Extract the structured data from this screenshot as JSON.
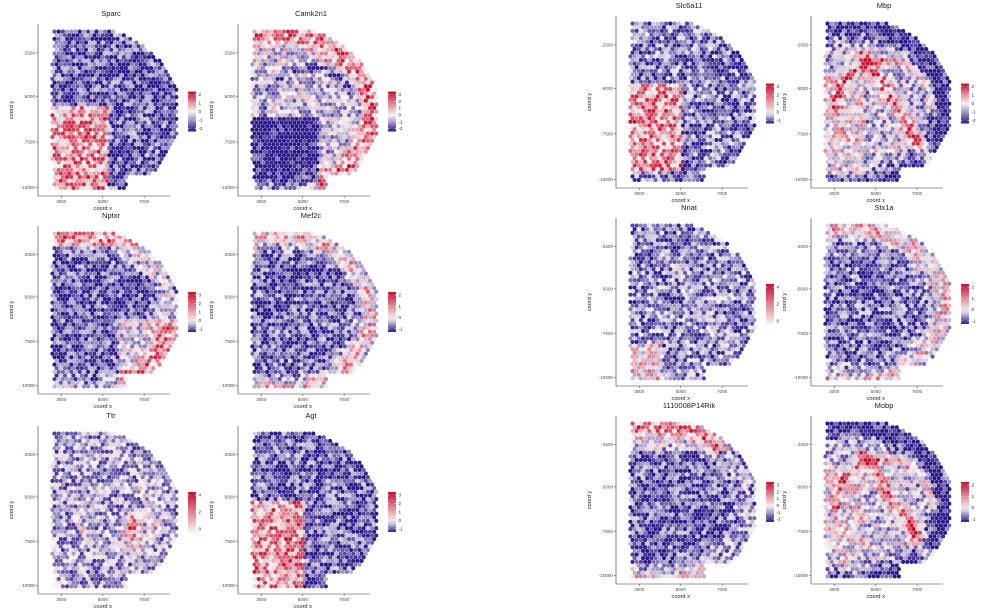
{
  "chart_data": [
    {
      "type": "heatmap",
      "title": "Sparc",
      "xlabel": "coord x",
      "ylabel": "coord y",
      "x_ticks": [
        "3000",
        "5000",
        "7000"
      ],
      "y_ticks": [
        "-2500",
        "-5000",
        "-7500",
        "-10000"
      ],
      "legend_ticks": [
        "2",
        "1",
        "0",
        "-1",
        "-2"
      ],
      "pattern": "sparc"
    },
    {
      "type": "heatmap",
      "title": "Camk2n1",
      "xlabel": "coord x",
      "ylabel": "coord y",
      "x_ticks": [
        "3000",
        "5000",
        "7000"
      ],
      "y_ticks": [
        "-2500",
        "-5000",
        "-7500",
        "-10000"
      ],
      "legend_ticks": [
        "3",
        "2",
        "1",
        "0",
        "-1",
        "-2"
      ],
      "pattern": "camk2n1"
    },
    {
      "type": "heatmap",
      "title": "Slc6a11",
      "xlabel": "coord x",
      "ylabel": "coord y",
      "x_ticks": [
        "3000",
        "5000",
        "7000"
      ],
      "y_ticks": [
        "-2500",
        "-5000",
        "-7500",
        "-10000"
      ],
      "legend_ticks": [
        "3",
        "2",
        "1",
        "0",
        "-1"
      ],
      "pattern": "slc6a11"
    },
    {
      "type": "heatmap",
      "title": "Mbp",
      "xlabel": "coord x",
      "ylabel": "coord y",
      "x_ticks": [
        "3000",
        "5000",
        "7000"
      ],
      "y_ticks": [
        "-2500",
        "-5000",
        "-7500",
        "-10000"
      ],
      "legend_ticks": [
        "2",
        "1",
        "0",
        "-1",
        "-2"
      ],
      "pattern": "mbp"
    },
    {
      "type": "heatmap",
      "title": "Nptxr",
      "xlabel": "coord x",
      "ylabel": "coord y",
      "x_ticks": [
        "3000",
        "5000",
        "7000"
      ],
      "y_ticks": [
        "-2500",
        "-5000",
        "-7500",
        "-10000"
      ],
      "legend_ticks": [
        "3",
        "2",
        "1",
        "0",
        "-1"
      ],
      "pattern": "nptxr"
    },
    {
      "type": "heatmap",
      "title": "Mef2c",
      "xlabel": "coord x",
      "ylabel": "coord y",
      "x_ticks": [
        "3000",
        "5000",
        "7000"
      ],
      "y_ticks": [
        "-2500",
        "-5000",
        "-7500",
        "-10000"
      ],
      "legend_ticks": [
        "2",
        "1",
        "0",
        "-1"
      ],
      "pattern": "mef2c"
    },
    {
      "type": "heatmap",
      "title": "Nnat",
      "xlabel": "coord x",
      "ylabel": "coord y",
      "x_ticks": [
        "3000",
        "5000",
        "7000"
      ],
      "y_ticks": [
        "-2500",
        "-5000",
        "-7500",
        "-10000"
      ],
      "legend_ticks": [
        "4",
        "2",
        "0"
      ],
      "pattern": "nnat"
    },
    {
      "type": "heatmap",
      "title": "Stx1a",
      "xlabel": "coord x",
      "ylabel": "coord y",
      "x_ticks": [
        "3000",
        "5000",
        "7000"
      ],
      "y_ticks": [
        "-2500",
        "-5000",
        "-7500",
        "-10000"
      ],
      "legend_ticks": [
        "2",
        "1",
        "0",
        "-1"
      ],
      "pattern": "stx1a"
    },
    {
      "type": "heatmap",
      "title": "Ttr",
      "xlabel": "coord x",
      "ylabel": "coord y",
      "x_ticks": [
        "3000",
        "5000",
        "7000"
      ],
      "y_ticks": [
        "-2500",
        "-5000",
        "-7500",
        "-10000"
      ],
      "legend_ticks": [
        "4",
        "2",
        "0"
      ],
      "pattern": "ttr"
    },
    {
      "type": "heatmap",
      "title": "Agt",
      "xlabel": "coord x",
      "ylabel": "coord y",
      "x_ticks": [
        "3000",
        "5000",
        "7000"
      ],
      "y_ticks": [
        "-2500",
        "-5000",
        "-7500",
        "-10000"
      ],
      "legend_ticks": [
        "3",
        "2",
        "1",
        "0",
        "-1"
      ],
      "pattern": "agt"
    },
    {
      "type": "heatmap",
      "title": "1110008P14Rik",
      "xlabel": "coord x",
      "ylabel": "coord y",
      "x_ticks": [
        "3000",
        "5000",
        "7000"
      ],
      "y_ticks": [
        "-2500",
        "-5000",
        "-7500",
        "-10000"
      ],
      "legend_ticks": [
        "3",
        "2",
        "1",
        "0",
        "-1",
        "-2"
      ],
      "pattern": "rik"
    },
    {
      "type": "heatmap",
      "title": "Mobp",
      "xlabel": "coord x",
      "ylabel": "coord y",
      "x_ticks": [
        "3000",
        "5000",
        "7000"
      ],
      "y_ticks": [
        "-2500",
        "-5000",
        "-7500",
        "-10000"
      ],
      "legend_ticks": [
        "2",
        "1",
        "0",
        "-1"
      ],
      "pattern": "mobp"
    }
  ],
  "colors": {
    "low": "#2d1a8a",
    "mid": "#f7f2f3",
    "high": "#c8102e"
  }
}
